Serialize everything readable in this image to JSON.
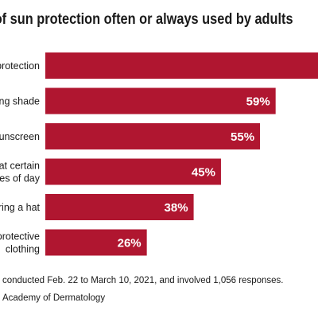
{
  "title": "pes of sun protection often or always used by adults",
  "footnote": "s conducted Feb. 22 to March 10, 2021, and involved 1,056 responses.",
  "source": "n Academy of Dermatology",
  "colors": {
    "bar": "#b01630",
    "value_label": "#ffffff",
    "text": "#1a1a1a"
  },
  "chart_data": {
    "type": "bar",
    "orientation": "horizontal",
    "title": "pes of sun protection often or always used by adults",
    "categories": [
      [
        "protection"
      ],
      [
        "ing shade"
      ],
      [
        "sunscreen"
      ],
      [
        "at certain",
        "mes of day"
      ],
      [
        "aring a hat"
      ],
      [
        "protective",
        "clothing"
      ]
    ],
    "values": [
      null,
      59,
      55,
      45,
      38,
      26
    ],
    "value_labels": [
      "",
      "59%",
      "55%",
      "45%",
      "38%",
      "26%"
    ],
    "xlim": [
      0,
      100
    ],
    "grid": false,
    "legend": "none"
  }
}
